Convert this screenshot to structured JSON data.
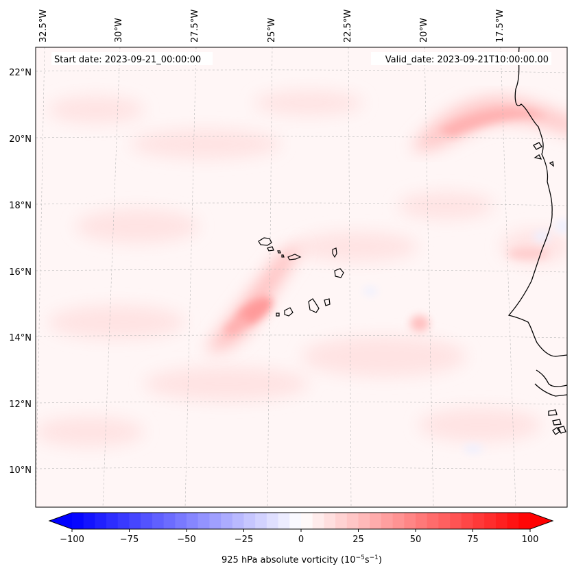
{
  "map": {
    "start_date": "Start date: 2023-09-21_00:00:00",
    "valid_date": "Valid_date: 2023-09-21T10:00:00.00",
    "lon_labels": [
      "32.5°W",
      "30°W",
      "27.5°W",
      "25°W",
      "22.5°W",
      "20°W",
      "17.5°W"
    ],
    "lat_labels": [
      "22°N",
      "20°N",
      "18°N",
      "16°N",
      "14°N",
      "12°N",
      "10°N"
    ],
    "field": "925 hPa absolute vorticity"
  },
  "colorbar": {
    "label": "925 hPa absolute vorticity (10",
    "label_exp1": "−5",
    "label_mid": "s",
    "label_exp2": "−1",
    "label_end": ")",
    "ticks": [
      "−100",
      "−75",
      "−50",
      "−25",
      "0",
      "25",
      "50",
      "75",
      "100"
    ],
    "min": -100,
    "max": 100,
    "levels": 41
  },
  "colors": {
    "negative": "#0000ff",
    "positive": "#ff0000",
    "neutral": "#ffffff",
    "coast": "#000000",
    "grid": "#b0b0b0"
  }
}
